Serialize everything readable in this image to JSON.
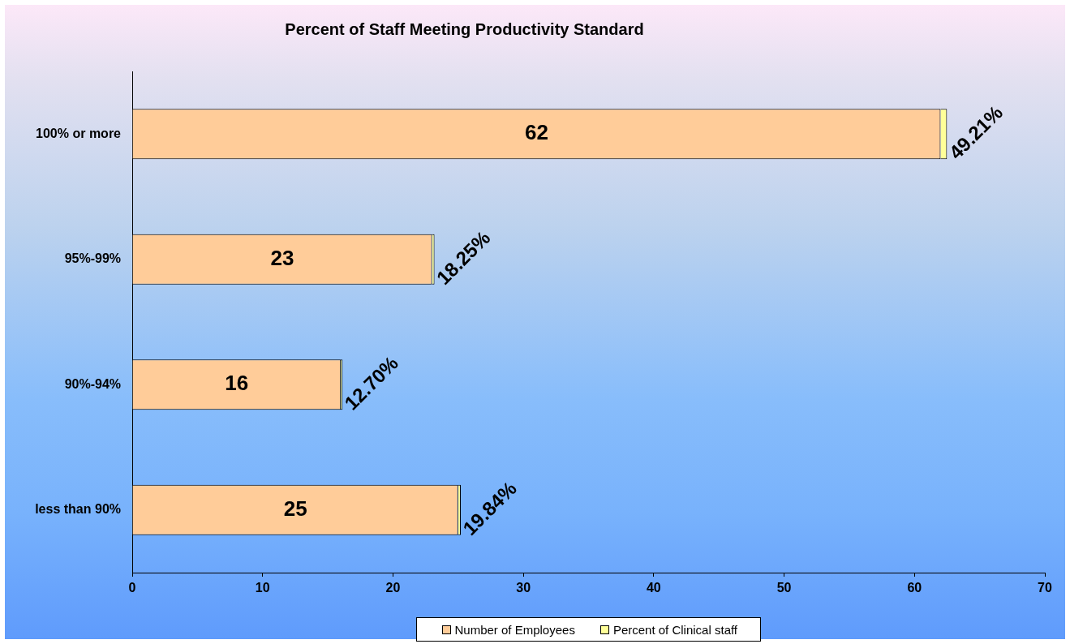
{
  "chart_data": {
    "type": "bar",
    "orientation": "horizontal",
    "stacked": true,
    "title": "Percent of Staff Meeting Productivity Standard",
    "categories": [
      "100% or more",
      "95%-99%",
      "90%-94%",
      "less than 90%"
    ],
    "series": [
      {
        "name": "Number of Employees",
        "color": "#ffcc99",
        "values": [
          62,
          23,
          16,
          25
        ],
        "value_labels": [
          "62",
          "23",
          "16",
          "25"
        ]
      },
      {
        "name": "Percent of Clinical staff",
        "color": "#ffff99",
        "values": [
          0.4921,
          0.1825,
          0.127,
          0.1984
        ],
        "value_labels": [
          "49.21%",
          "18.25%",
          "12.70%",
          "19.84%"
        ]
      }
    ],
    "xlim": [
      0,
      70
    ],
    "xticks": [
      0,
      10,
      20,
      30,
      40,
      50,
      60,
      70
    ],
    "grid": false,
    "legend": "bottom"
  }
}
